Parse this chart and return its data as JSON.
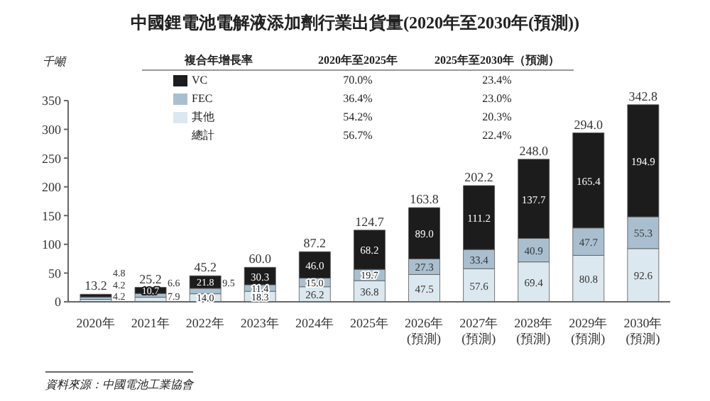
{
  "chart_data": {
    "type": "bar",
    "title": "中國鋰電池電解液添加劑行業出貨量(2020年至2030年(預測))",
    "ylabel": "千噸",
    "categories": [
      "2020年",
      "2021年",
      "2022年",
      "2023年",
      "2024年",
      "2025年",
      "2026年 (預測)",
      "2027年 (預測)",
      "2028年 (預測)",
      "2029年 (預測)",
      "2030年 (預測)"
    ],
    "series": [
      {
        "name": "其他",
        "color": "#dce8ef",
        "values": [
          4.2,
          7.9,
          14.0,
          18.3,
          26.2,
          36.8,
          47.5,
          57.6,
          69.4,
          80.8,
          92.6
        ],
        "value_labels": [
          "4.2",
          "7.9",
          "14.0",
          "18.3",
          "26.2",
          "36.8",
          "47.5",
          "57.6",
          "69.4",
          "80.8",
          "92.6"
        ]
      },
      {
        "name": "FEC",
        "color": "#a9bfcf",
        "values": [
          4.2,
          6.6,
          9.5,
          11.4,
          15.0,
          19.7,
          27.3,
          33.4,
          40.9,
          47.7,
          55.3
        ],
        "value_labels": [
          "4.2",
          "6.6",
          "9.5",
          "11.4",
          "15.0",
          "19.7",
          "27.3",
          "33.4",
          "40.9",
          "47.7",
          "55.3"
        ]
      },
      {
        "name": "VC",
        "color": "#1c1c1c",
        "values": [
          4.8,
          10.7,
          21.8,
          30.3,
          46.0,
          68.2,
          89.0,
          111.2,
          137.7,
          165.4,
          194.9
        ],
        "value_labels": [
          "4.8",
          "10.7",
          "21.8",
          "30.3",
          "46.0",
          "68.2",
          "89.0",
          "111.2",
          "137.7",
          "165.4",
          "194.9"
        ]
      }
    ],
    "stacked": true,
    "totals": [
      "13.2",
      "25.2",
      "45.2",
      "60.0",
      "87.2",
      "124.7",
      "163.8",
      "202.2",
      "248.0",
      "294.0",
      "342.8"
    ],
    "ylim": [
      0,
      350
    ],
    "yticks": [
      0,
      50,
      100,
      150,
      200,
      250,
      300,
      350
    ],
    "legend": "top",
    "annotations": [
      "複合年增長率",
      "2020年至2025年",
      "2025年至2030年（預測）",
      "70.0%",
      "23.4%",
      "36.4%",
      "23.0%",
      "54.2%",
      "20.3%",
      "總計",
      "56.7%",
      "22.4%",
      "資料來源：中國電池工業協會"
    ]
  }
}
